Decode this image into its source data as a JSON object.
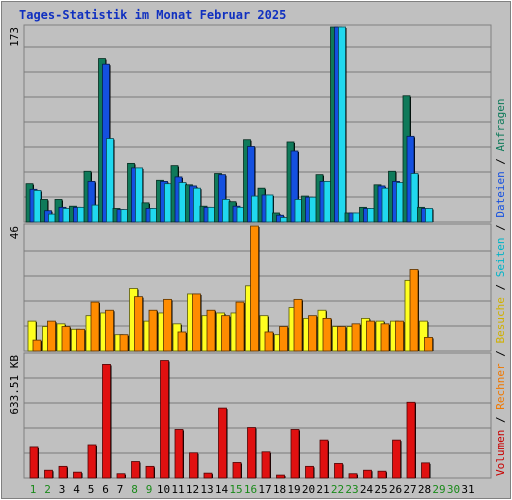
{
  "chart_data": {
    "type": "bar",
    "title": "Tages-Statistik im Monat Februar 2025",
    "days": [
      "1",
      "2",
      "3",
      "4",
      "5",
      "6",
      "7",
      "8",
      "9",
      "10",
      "11",
      "12",
      "13",
      "14",
      "15",
      "16",
      "17",
      "18",
      "19",
      "20",
      "21",
      "22",
      "23",
      "24",
      "25",
      "26",
      "27",
      "28",
      "29",
      "30",
      "31"
    ],
    "weekend_days": [
      "1",
      "2",
      "8",
      "9",
      "15",
      "16",
      "22",
      "23",
      "29",
      "30"
    ],
    "panels": [
      {
        "id": "hits",
        "ymax_label": "173",
        "ymax": 173,
        "series": [
          {
            "name": "Anfragen",
            "color": "#0f7a5a",
            "values": [
              34,
              20,
              20,
              14,
              45,
              145,
              12,
              52,
              17,
              37,
              50,
              33,
              14,
              43,
              18,
              73,
              30,
              8,
              71,
              23,
              42,
              173,
              8,
              13,
              33,
              45,
              112,
              13,
              null,
              null,
              null
            ]
          },
          {
            "name": "Dateien",
            "color": "#1450e0",
            "values": [
              29,
              10,
              13,
              13,
              36,
              140,
              11,
              48,
              12,
              36,
              40,
              32,
              13,
              42,
              14,
              67,
              24,
              6,
              63,
              22,
              36,
              173,
              8,
              12,
              32,
              36,
              76,
              12,
              null,
              null,
              null
            ]
          },
          {
            "name": "Seiten",
            "color": "#20d8ef",
            "values": [
              28,
              7,
              12,
              13,
              15,
              74,
              11,
              48,
              12,
              34,
              35,
              30,
              13,
              20,
              13,
              23,
              24,
              4,
              20,
              22,
              36,
              173,
              8,
              12,
              30,
              35,
              43,
              12,
              null,
              null,
              null
            ]
          }
        ]
      },
      {
        "id": "visits",
        "ymax_label": "46",
        "ymax": 46,
        "series": [
          {
            "name": "Besuche",
            "color": "#ffff20",
            "values": [
              11,
              9,
              10,
              8,
              13,
              14,
              6,
              23,
              11,
              14,
              10,
              21,
              13,
              14,
              14,
              24,
              13,
              6,
              16,
              12,
              15,
              9,
              9,
              12,
              11,
              11,
              26,
              11,
              null,
              null,
              null
            ]
          },
          {
            "name": "Rechner",
            "color": "#ff8c00",
            "values": [
              4,
              11,
              9,
              8,
              18,
              15,
              6,
              20,
              15,
              19,
              7,
              21,
              15,
              13,
              18,
              46,
              7,
              9,
              19,
              13,
              12,
              9,
              10,
              11,
              10,
              11,
              30,
              5,
              null,
              null,
              null
            ]
          }
        ]
      },
      {
        "id": "volume",
        "ymax_label": "633.51 KB",
        "ymax": 633.51,
        "series": [
          {
            "name": "Volumen",
            "color": "#e01010",
            "values": [
              160,
              40,
              60,
              30,
              170,
              585,
              22,
              85,
              60,
              605,
              250,
              130,
              25,
              360,
              80,
              260,
              135,
              15,
              250,
              60,
              195,
              75,
              22,
              40,
              35,
              195,
              390,
              78,
              null,
              null,
              null
            ]
          }
        ]
      }
    ],
    "legend": [
      {
        "label": "Volumen",
        "color": "#c80000"
      },
      {
        "label": "Rechner",
        "color": "#f07800"
      },
      {
        "label": "Besuche",
        "color": "#d0b000"
      },
      {
        "label": "Seiten",
        "color": "#00b4c8"
      },
      {
        "label": "Dateien",
        "color": "#1450e0"
      },
      {
        "label": "Anfragen",
        "color": "#0f7a5a"
      }
    ],
    "legend_separator": "/",
    "colors": {
      "background": "#c0c0c0",
      "plot_border": "#808080",
      "gridline": "#7a7a7a",
      "title": "#1030c0",
      "day_label": "#000000",
      "weekend_label": "#1a8a1a"
    }
  }
}
